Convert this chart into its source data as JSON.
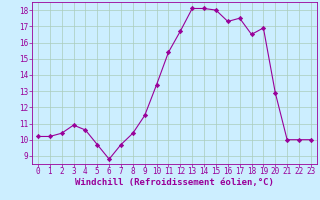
{
  "x": [
    0,
    1,
    2,
    3,
    4,
    5,
    6,
    7,
    8,
    9,
    10,
    11,
    12,
    13,
    14,
    15,
    16,
    17,
    18,
    19,
    20,
    21,
    22,
    23
  ],
  "y": [
    10.2,
    10.2,
    10.4,
    10.9,
    10.6,
    9.7,
    8.8,
    9.7,
    10.4,
    11.5,
    13.4,
    15.4,
    16.7,
    18.1,
    18.1,
    18.0,
    17.3,
    17.5,
    16.5,
    16.9,
    12.9,
    10.0,
    10.0,
    10.0
  ],
  "xlabel": "Windchill (Refroidissement éolien,°C)",
  "xlim": [
    -0.5,
    23.5
  ],
  "ylim": [
    8.5,
    18.5
  ],
  "yticks": [
    9,
    10,
    11,
    12,
    13,
    14,
    15,
    16,
    17,
    18
  ],
  "xticks": [
    0,
    1,
    2,
    3,
    4,
    5,
    6,
    7,
    8,
    9,
    10,
    11,
    12,
    13,
    14,
    15,
    16,
    17,
    18,
    19,
    20,
    21,
    22,
    23
  ],
  "line_color": "#990099",
  "marker": "D",
  "marker_size": 2.2,
  "bg_color": "#cceeff",
  "grid_color": "#aaccbb",
  "font_color": "#990099",
  "tick_fontsize": 5.5,
  "xlabel_fontsize": 6.5
}
